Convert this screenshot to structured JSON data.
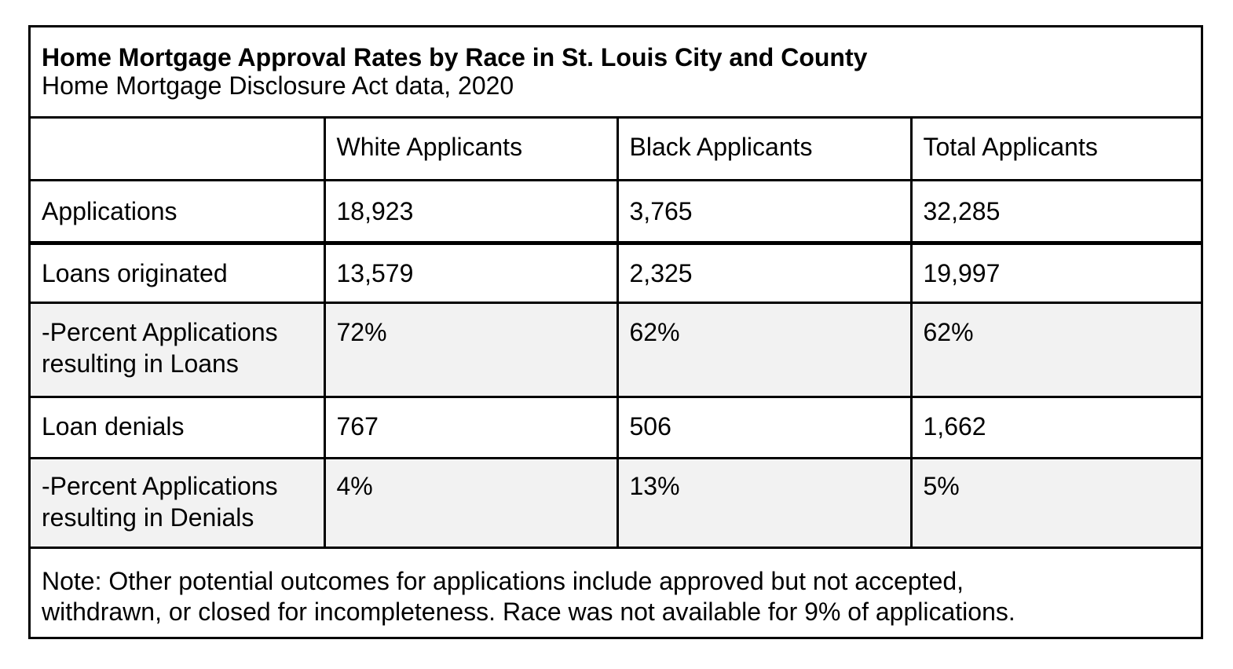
{
  "chart_data": {
    "type": "table",
    "title": "Home Mortgage Approval Rates by Race in St. Louis City and County",
    "subtitle": "Home Mortgage Disclosure Act data, 2020",
    "columns": [
      "",
      "White Applicants",
      "Black Applicants",
      "Total Applicants"
    ],
    "rows": [
      {
        "label": "Applications",
        "label_lines": [
          "Applications"
        ],
        "values": [
          "18,923",
          "3,765",
          "32,285"
        ]
      },
      {
        "label": "Loans originated",
        "label_lines": [
          "Loans originated"
        ],
        "values": [
          "13,579",
          "2,325",
          "19,997"
        ]
      },
      {
        "label": "-Percent Applications resulting in Loans",
        "label_lines": [
          "-Percent Applications",
          "resulting in Loans"
        ],
        "values": [
          "72%",
          "62%",
          "62%"
        ]
      },
      {
        "label": "Loan denials",
        "label_lines": [
          "Loan denials"
        ],
        "values": [
          "767",
          "506",
          "1,662"
        ]
      },
      {
        "label": "-Percent Applications resulting in Denials",
        "label_lines": [
          "-Percent Applications",
          "resulting in Denials"
        ],
        "values": [
          "4%",
          "13%",
          "5%"
        ]
      }
    ],
    "note_lines": [
      "Note: Other potential outcomes for applications include approved but not accepted,",
      "withdrawn, or closed for incompleteness. Race was not available for 9% of applications."
    ]
  }
}
